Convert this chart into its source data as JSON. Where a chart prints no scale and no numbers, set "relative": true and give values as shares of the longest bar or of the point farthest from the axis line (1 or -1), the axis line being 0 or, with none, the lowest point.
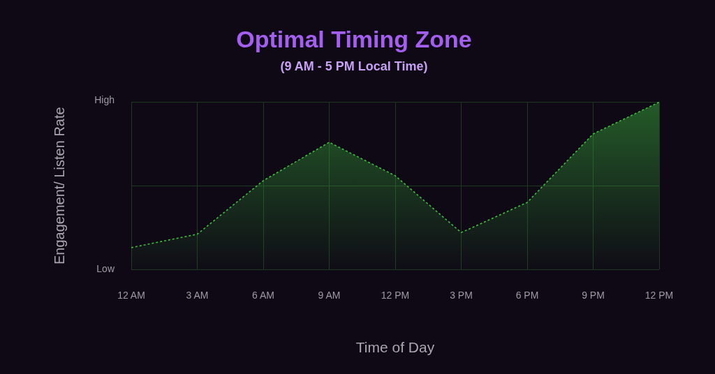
{
  "chart_data": {
    "type": "area",
    "title": "Optimal Timing Zone",
    "subtitle": "(9 AM - 5 PM Local Time)",
    "xlabel": "Time of Day",
    "ylabel": "Engagement/ Listen Rate",
    "categories": [
      "12 AM",
      "3 AM",
      "6 AM",
      "9 AM",
      "12 PM",
      "3 PM",
      "6 PM",
      "9 PM",
      "12 PM"
    ],
    "series": [
      {
        "color": "#3fbf3f",
        "values": [
          0.13,
          0.21,
          0.53,
          0.76,
          0.56,
          0.22,
          0.4,
          0.81,
          1.0
        ]
      }
    ],
    "relative": true,
    "annotations": [
      "High",
      "Low"
    ],
    "grid": true,
    "legend": false,
    "marker": "none",
    "line_style": "dashed"
  }
}
